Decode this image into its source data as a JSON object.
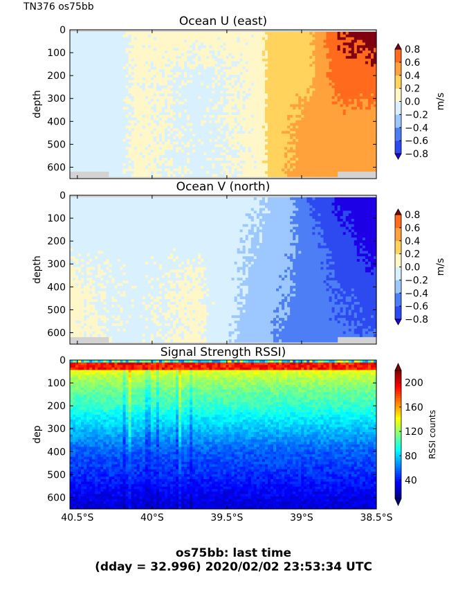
{
  "header": {
    "corner_label": "TN376 os75bb"
  },
  "footer": {
    "line1": "os75bb: last time",
    "line2": "(dday = 32.996) 2020/02/02 23:53:34 UTC"
  },
  "colors": {
    "missing": "#d3d3d3",
    "u_v_palette": [
      "#1e00e6",
      "#2c4af0",
      "#4d7ef5",
      "#9cc8ff",
      "#d9f0ff",
      "#fff7c8",
      "#ffd35c",
      "#ffa23c",
      "#ff6a1c",
      "#dc1a0c",
      "#800010"
    ],
    "rssi_palette": [
      "#00007f",
      "#0000ff",
      "#0080ff",
      "#00ffff",
      "#80ff80",
      "#ffff00",
      "#ff8000",
      "#ff0000",
      "#7f0000"
    ]
  },
  "chart_data": [
    {
      "type": "heatmap",
      "title": "Ocean U (east)",
      "ylabel": "depth",
      "xlabel": "",
      "ylim": [
        650,
        0
      ],
      "yticks": [
        "0",
        "100",
        "200",
        "300",
        "400",
        "500",
        "600"
      ],
      "x_range_deg_south": [
        40.55,
        38.5
      ],
      "xticks": [],
      "colorbar": {
        "label": "m/s",
        "ticks": [
          "0.8",
          "0.6",
          "0.4",
          "0.2",
          "0.0",
          "−0.2",
          "−0.4",
          "−0.6",
          "−0.8"
        ],
        "range": [
          -0.8,
          0.8
        ]
      },
      "columns": [
        {
          "lat": 40.55,
          "profile": [
            -0.05,
            -0.05,
            -0.05,
            -0.05
          ]
        },
        {
          "lat": 40.2,
          "profile": [
            -0.05,
            -0.05,
            -0.05,
            -0.05
          ]
        },
        {
          "lat": 40.1,
          "profile": [
            0.05,
            0.05,
            0.05,
            0.05
          ]
        },
        {
          "lat": 39.7,
          "profile": [
            0.05,
            -0.05,
            -0.05,
            -0.05
          ]
        },
        {
          "lat": 39.3,
          "profile": [
            0.05,
            0.05,
            0.05,
            0.05
          ]
        },
        {
          "lat": 39.2,
          "profile": [
            0.3,
            0.3,
            0.3,
            0.3
          ]
        },
        {
          "lat": 38.95,
          "profile": [
            0.35,
            0.35,
            0.5,
            0.5
          ]
        },
        {
          "lat": 38.75,
          "profile": [
            0.8,
            0.7,
            0.5,
            0.5
          ]
        },
        {
          "lat": 38.5,
          "profile": [
            0.9,
            0.7,
            0.5,
            0.5
          ]
        }
      ]
    },
    {
      "type": "heatmap",
      "title": "Ocean V (north)",
      "ylabel": "depth",
      "xlabel": "",
      "ylim": [
        650,
        0
      ],
      "yticks": [
        "0",
        "100",
        "200",
        "300",
        "400",
        "500",
        "600"
      ],
      "x_range_deg_south": [
        40.55,
        38.5
      ],
      "xticks": [],
      "colorbar": {
        "label": "m/s",
        "ticks": [
          "0.8",
          "0.6",
          "0.4",
          "0.2",
          "0.0",
          "−0.2",
          "−0.4",
          "−0.6",
          "−0.8"
        ],
        "range": [
          -0.8,
          0.8
        ]
      },
      "columns": [
        {
          "lat": 40.55,
          "profile": [
            -0.05,
            -0.05,
            0.05,
            0.05
          ]
        },
        {
          "lat": 40.1,
          "profile": [
            -0.05,
            -0.05,
            -0.05,
            -0.05
          ]
        },
        {
          "lat": 39.7,
          "profile": [
            -0.05,
            -0.05,
            0.05,
            0.05
          ]
        },
        {
          "lat": 39.35,
          "profile": [
            -0.15,
            -0.2,
            -0.25,
            -0.3
          ]
        },
        {
          "lat": 39.1,
          "profile": [
            -0.3,
            -0.35,
            -0.4,
            -0.45
          ]
        },
        {
          "lat": 38.95,
          "profile": [
            -0.6,
            -0.5,
            -0.5,
            -0.5
          ]
        },
        {
          "lat": 38.75,
          "profile": [
            -0.85,
            -0.7,
            -0.6,
            -0.55
          ]
        },
        {
          "lat": 38.5,
          "profile": [
            -0.9,
            -0.9,
            -0.7,
            -0.6
          ]
        }
      ]
    },
    {
      "type": "heatmap",
      "title": "Signal Strength RSSI)",
      "ylabel": "dep",
      "xlabel": "",
      "ylim": [
        650,
        0
      ],
      "yticks": [
        "0",
        "100",
        "200",
        "300",
        "400",
        "500",
        "600"
      ],
      "x_range_deg_south": [
        40.55,
        38.5
      ],
      "xticks": [
        {
          "value": 40.5,
          "label": "40.5°S"
        },
        {
          "value": 40.0,
          "label": "40°S"
        },
        {
          "value": 39.5,
          "label": "39.5°S"
        },
        {
          "value": 39.0,
          "label": "39°S"
        },
        {
          "value": 38.5,
          "label": "38.5°S"
        }
      ],
      "colorbar": {
        "label": "RSSI counts",
        "ticks": [
          "200",
          "160",
          "120",
          "80",
          "40"
        ],
        "range": [
          10,
          220
        ]
      },
      "depth_profile": [
        [
          20,
          170
        ],
        [
          40,
          140
        ],
        [
          80,
          125
        ],
        [
          140,
          110
        ],
        [
          200,
          100
        ],
        [
          260,
          85
        ],
        [
          320,
          72
        ],
        [
          400,
          55
        ],
        [
          500,
          45
        ],
        [
          600,
          32
        ],
        [
          650,
          28
        ]
      ]
    }
  ]
}
